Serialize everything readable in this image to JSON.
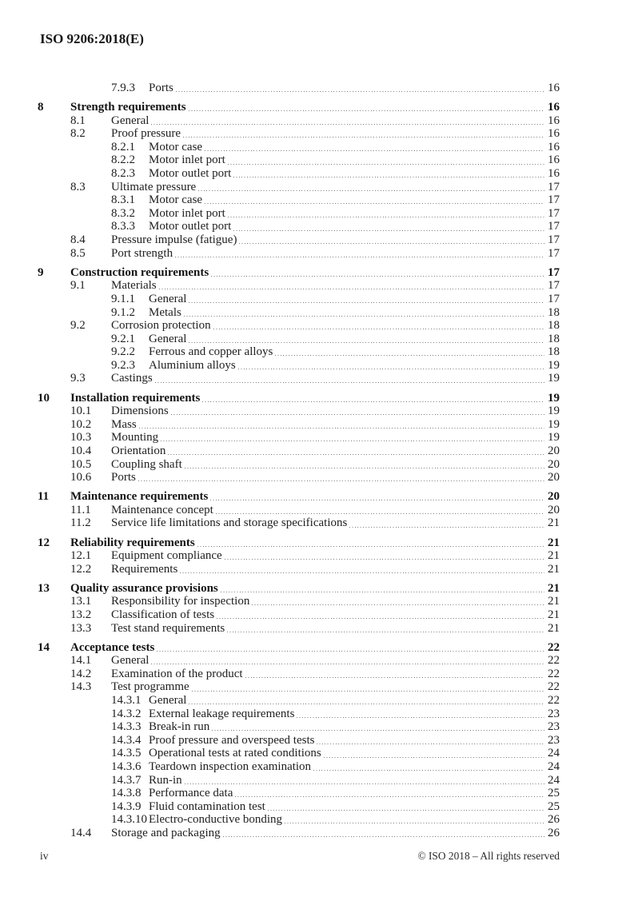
{
  "header": {
    "title": "ISO 9206:2018(E)"
  },
  "toc": {
    "entries": [
      {
        "level": 3,
        "num": "7.9.3",
        "title": "Ports",
        "page": "16"
      },
      {
        "level": 1,
        "num": "8",
        "title": "Strength requirements",
        "page": "16"
      },
      {
        "level": 2,
        "num": "8.1",
        "title": "General",
        "page": "16"
      },
      {
        "level": 2,
        "num": "8.2",
        "title": "Proof pressure",
        "page": "16"
      },
      {
        "level": 3,
        "num": "8.2.1",
        "title": "Motor case",
        "page": "16"
      },
      {
        "level": 3,
        "num": "8.2.2",
        "title": "Motor inlet port",
        "page": "16"
      },
      {
        "level": 3,
        "num": "8.2.3",
        "title": "Motor outlet port",
        "page": "16"
      },
      {
        "level": 2,
        "num": "8.3",
        "title": "Ultimate pressure",
        "page": "17"
      },
      {
        "level": 3,
        "num": "8.3.1",
        "title": "Motor case",
        "page": "17"
      },
      {
        "level": 3,
        "num": "8.3.2",
        "title": "Motor inlet port",
        "page": "17"
      },
      {
        "level": 3,
        "num": "8.3.3",
        "title": "Motor outlet port",
        "page": "17"
      },
      {
        "level": 2,
        "num": "8.4",
        "title": "Pressure impulse (fatigue)",
        "page": "17"
      },
      {
        "level": 2,
        "num": "8.5",
        "title": "Port strength",
        "page": "17"
      },
      {
        "level": 1,
        "num": "9",
        "title": "Construction requirements",
        "page": "17"
      },
      {
        "level": 2,
        "num": "9.1",
        "title": "Materials",
        "page": "17"
      },
      {
        "level": 3,
        "num": "9.1.1",
        "title": "General",
        "page": "17"
      },
      {
        "level": 3,
        "num": "9.1.2",
        "title": "Metals",
        "page": "18"
      },
      {
        "level": 2,
        "num": "9.2",
        "title": "Corrosion protection",
        "page": "18"
      },
      {
        "level": 3,
        "num": "9.2.1",
        "title": "General",
        "page": "18"
      },
      {
        "level": 3,
        "num": "9.2.2",
        "title": "Ferrous and copper alloys",
        "page": "18"
      },
      {
        "level": 3,
        "num": "9.2.3",
        "title": "Aluminium alloys",
        "page": "19"
      },
      {
        "level": 2,
        "num": "9.3",
        "title": "Castings",
        "page": "19"
      },
      {
        "level": 1,
        "num": "10",
        "title": "Installation requirements",
        "page": "19"
      },
      {
        "level": 2,
        "num": "10.1",
        "title": "Dimensions",
        "page": "19"
      },
      {
        "level": 2,
        "num": "10.2",
        "title": "Mass",
        "page": "19"
      },
      {
        "level": 2,
        "num": "10.3",
        "title": "Mounting",
        "page": "19"
      },
      {
        "level": 2,
        "num": "10.4",
        "title": "Orientation",
        "page": "20"
      },
      {
        "level": 2,
        "num": "10.5",
        "title": "Coupling shaft",
        "page": "20"
      },
      {
        "level": 2,
        "num": "10.6",
        "title": "Ports",
        "page": "20"
      },
      {
        "level": 1,
        "num": "11",
        "title": "Maintenance requirements",
        "page": "20"
      },
      {
        "level": 2,
        "num": "11.1",
        "title": "Maintenance concept",
        "page": "20"
      },
      {
        "level": 2,
        "num": "11.2",
        "title": "Service life limitations and storage specifications",
        "page": "21"
      },
      {
        "level": 1,
        "num": "12",
        "title": "Reliability requirements",
        "page": "21"
      },
      {
        "level": 2,
        "num": "12.1",
        "title": "Equipment compliance",
        "page": "21"
      },
      {
        "level": 2,
        "num": "12.2",
        "title": "Requirements",
        "page": "21"
      },
      {
        "level": 1,
        "num": "13",
        "title": "Quality assurance provisions",
        "page": "21"
      },
      {
        "level": 2,
        "num": "13.1",
        "title": "Responsibility for inspection",
        "page": "21"
      },
      {
        "level": 2,
        "num": "13.2",
        "title": "Classification of tests",
        "page": "21"
      },
      {
        "level": 2,
        "num": "13.3",
        "title": "Test stand requirements",
        "page": "21"
      },
      {
        "level": 1,
        "num": "14",
        "title": "Acceptance tests",
        "page": "22"
      },
      {
        "level": 2,
        "num": "14.1",
        "title": "General",
        "page": "22"
      },
      {
        "level": 2,
        "num": "14.2",
        "title": "Examination of the product",
        "page": "22"
      },
      {
        "level": 2,
        "num": "14.3",
        "title": "Test programme",
        "page": "22"
      },
      {
        "level": 3,
        "num": "14.3.1",
        "title": "General",
        "page": "22"
      },
      {
        "level": 3,
        "num": "14.3.2",
        "title": "External leakage requirements",
        "page": "23"
      },
      {
        "level": 3,
        "num": "14.3.3",
        "title": "Break-in run",
        "page": "23"
      },
      {
        "level": 3,
        "num": "14.3.4",
        "title": "Proof pressure and overspeed tests",
        "page": "23"
      },
      {
        "level": 3,
        "num": "14.3.5",
        "title": "Operational tests at rated conditions",
        "page": "24"
      },
      {
        "level": 3,
        "num": "14.3.6",
        "title": "Teardown inspection examination",
        "page": "24"
      },
      {
        "level": 3,
        "num": "14.3.7",
        "title": "Run-in",
        "page": "24"
      },
      {
        "level": 3,
        "num": "14.3.8",
        "title": "Performance data",
        "page": "25"
      },
      {
        "level": 3,
        "num": "14.3.9",
        "title": "Fluid contamination test",
        "page": "25"
      },
      {
        "level": 3,
        "num": "14.3.10",
        "title": "Electro-conductive bonding",
        "page": "26"
      },
      {
        "level": 2,
        "num": "14.4",
        "title": "Storage and packaging",
        "page": "26"
      }
    ]
  },
  "footer": {
    "page_label": "iv",
    "copyright": "© ISO 2018 – All rights reserved"
  }
}
